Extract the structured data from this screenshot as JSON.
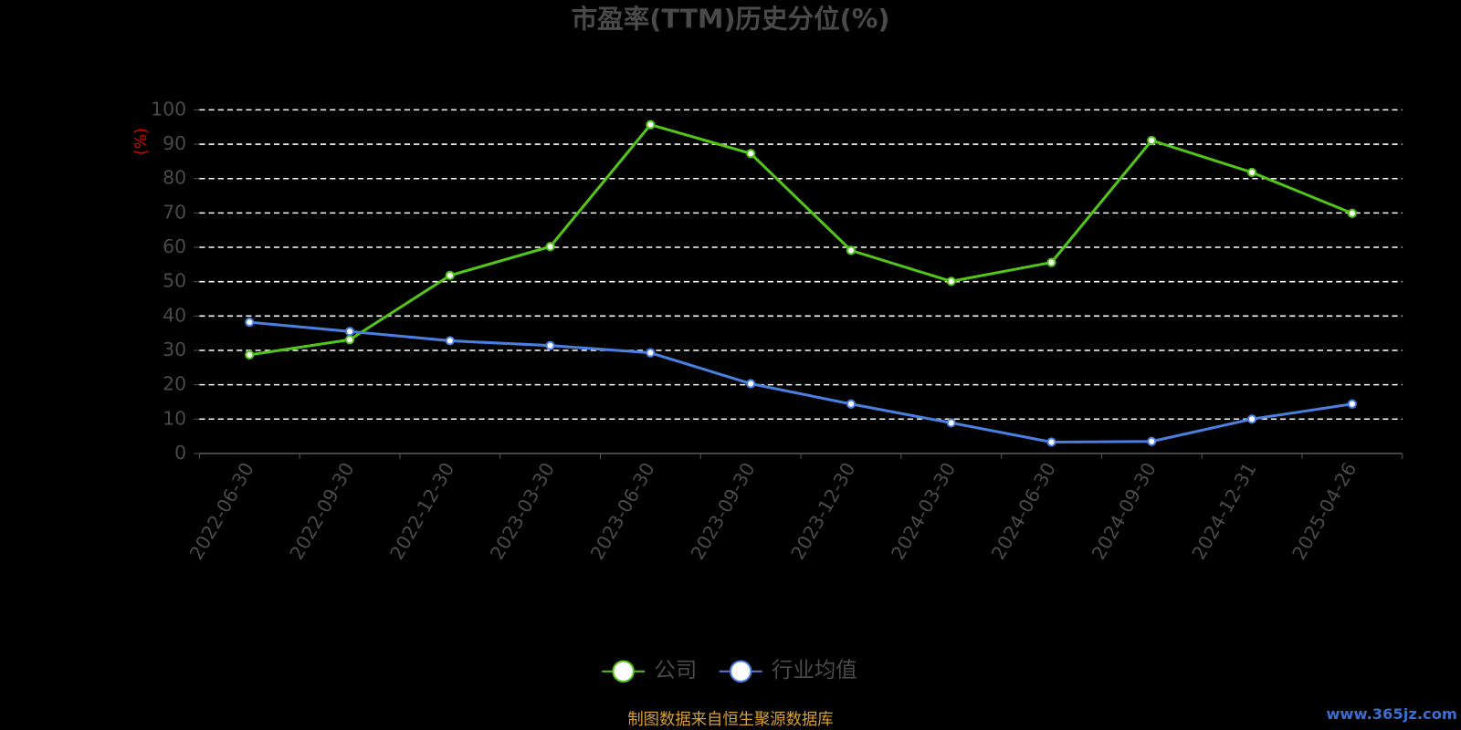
{
  "chart_data": {
    "type": "line",
    "title": "市盈率(TTM)历史分位(%)",
    "y_label": "(%)",
    "categories": [
      "2022-06-30",
      "2022-09-30",
      "2022-12-30",
      "2023-03-30",
      "2023-06-30",
      "2023-09-30",
      "2023-12-30",
      "2024-03-30",
      "2024-06-30",
      "2024-09-30",
      "2024-12-31",
      "2025-04-26"
    ],
    "series": [
      {
        "name": "公司",
        "color": "#52c41a",
        "values": [
          28.7,
          33.1,
          51.8,
          60.2,
          95.7,
          87.3,
          59.1,
          50.1,
          55.6,
          91.1,
          81.8,
          69.9
        ]
      },
      {
        "name": "行业均值",
        "color": "#4a7fe0",
        "values": [
          38.2,
          35.5,
          32.8,
          31.4,
          29.3,
          20.3,
          14.4,
          8.9,
          3.3,
          3.5,
          10.0,
          14.4
        ]
      }
    ],
    "ylim": [
      0,
      100
    ],
    "yticks": [
      0,
      10,
      20,
      30,
      40,
      50,
      60,
      70,
      80,
      90,
      100
    ],
    "grid": true,
    "source": "制图数据来自恒生聚源数据库",
    "watermark": "www.365jz.com"
  }
}
